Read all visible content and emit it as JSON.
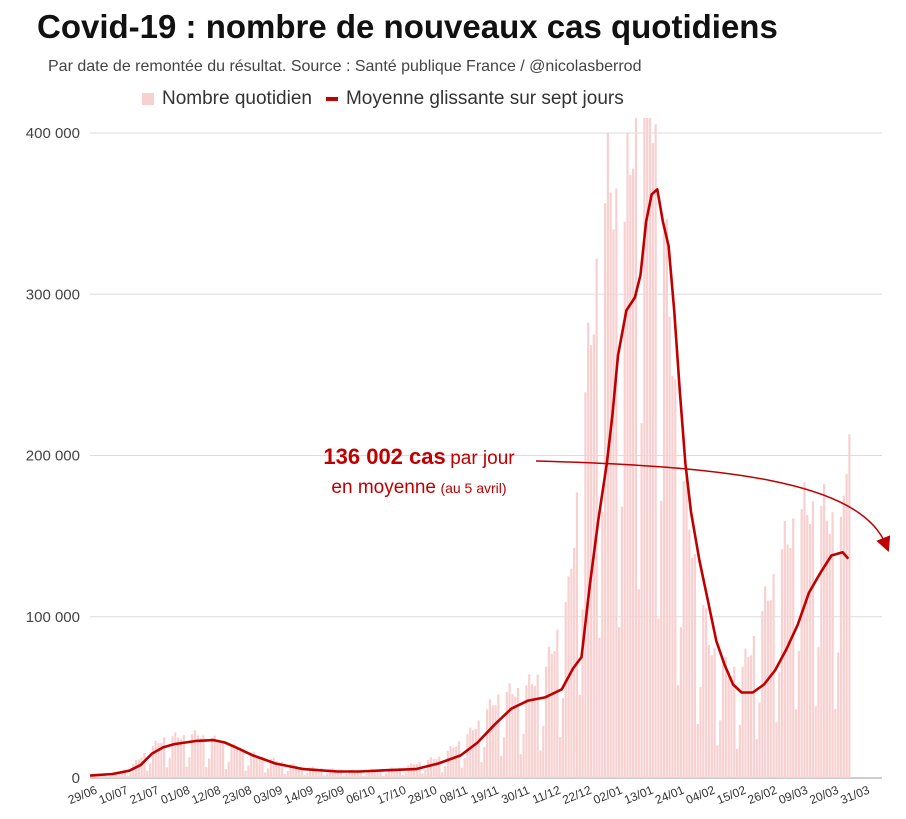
{
  "title": "Covid-19 : nombre de nouveaux cas quotidiens",
  "subtitle": "Par date de remontée du résultat. Source : Santé publique France / @nicolasberrod",
  "legend": {
    "bars": "Nombre quotidien",
    "line": "Moyenne glissante sur sept jours"
  },
  "annotation": {
    "value": "136 002 cas",
    "per_day": "par jour",
    "average": "en moyenne",
    "date": "(au 5 avril)"
  },
  "colors": {
    "bars": "#f8d0d0",
    "line": "#c00000",
    "grid": "#dddddd",
    "annotation": "#c00000"
  },
  "chart_data": {
    "type": "bar",
    "title": "Covid-19 : nombre de nouveaux cas quotidiens",
    "subtitle": "Par date de remontée du résultat. Source : Santé publique France / @nicolasberrod",
    "y_ticks": [
      {
        "value": 0,
        "label": "0"
      },
      {
        "value": 100000,
        "label": "100 000"
      },
      {
        "value": 200000,
        "label": "200 000"
      },
      {
        "value": 300000,
        "label": "300 000"
      },
      {
        "value": 400000,
        "label": "400 000"
      }
    ],
    "ylim": [
      0,
      400000
    ],
    "x_tick_labels": [
      "29/06",
      "10/07",
      "21/07",
      "01/08",
      "12/08",
      "23/08",
      "03/09",
      "14/09",
      "25/09",
      "06/10",
      "17/10",
      "28/10",
      "08/11",
      "19/11",
      "30/11",
      "11/12",
      "22/12",
      "02/01",
      "13/01",
      "24/01",
      "04/02",
      "15/02",
      "26/02",
      "09/03",
      "20/03",
      "31/03"
    ],
    "x_tick_interval_days": 11,
    "grid": true,
    "legend_position": "top",
    "series": [
      {
        "name": "Nombre quotidien",
        "type": "bar",
        "note": "daily values per day, read approximately",
        "anchors": [
          [
            0,
            2000
          ],
          [
            10,
            3000
          ],
          [
            14,
            6000
          ],
          [
            20,
            15000
          ],
          [
            26,
            22000
          ],
          [
            38,
            24000
          ],
          [
            46,
            20000
          ],
          [
            60,
            12000
          ],
          [
            75,
            6000
          ],
          [
            95,
            4000
          ],
          [
            110,
            5500
          ],
          [
            125,
            12000
          ],
          [
            135,
            25000
          ],
          [
            145,
            45000
          ],
          [
            155,
            50000
          ],
          [
            162,
            60000
          ],
          [
            170,
            100000
          ],
          [
            175,
            190000
          ],
          [
            180,
            280000
          ],
          [
            185,
            330000
          ],
          [
            190,
            300000
          ],
          [
            194,
            380000
          ],
          [
            198,
            420000
          ],
          [
            202,
            330000
          ],
          [
            206,
            260000
          ],
          [
            210,
            170000
          ],
          [
            214,
            130000
          ],
          [
            220,
            75000
          ],
          [
            226,
            60000
          ],
          [
            232,
            60000
          ],
          [
            238,
            85000
          ],
          [
            244,
            115000
          ],
          [
            250,
            140000
          ],
          [
            256,
            150000
          ],
          [
            262,
            145000
          ],
          [
            268,
            140000
          ],
          [
            270,
            203000
          ]
        ]
      },
      {
        "name": "Moyenne glissante sur sept jours",
        "type": "line",
        "points": [
          [
            0,
            1500
          ],
          [
            8,
            2500
          ],
          [
            14,
            4500
          ],
          [
            18,
            8000
          ],
          [
            22,
            15000
          ],
          [
            26,
            19000
          ],
          [
            30,
            21000
          ],
          [
            38,
            23000
          ],
          [
            44,
            23500
          ],
          [
            48,
            22000
          ],
          [
            52,
            19000
          ],
          [
            58,
            14000
          ],
          [
            66,
            9000
          ],
          [
            76,
            5500
          ],
          [
            88,
            4000
          ],
          [
            96,
            4000
          ],
          [
            108,
            5000
          ],
          [
            116,
            5500
          ],
          [
            124,
            9000
          ],
          [
            132,
            14000
          ],
          [
            138,
            22000
          ],
          [
            144,
            33000
          ],
          [
            150,
            43000
          ],
          [
            156,
            48000
          ],
          [
            162,
            50000
          ],
          [
            168,
            55000
          ],
          [
            172,
            68000
          ],
          [
            175,
            75000
          ],
          [
            178,
            120000
          ],
          [
            181,
            160000
          ],
          [
            184,
            195000
          ],
          [
            186,
            225000
          ],
          [
            188,
            262000
          ],
          [
            191,
            290000
          ],
          [
            194,
            298000
          ],
          [
            196,
            312000
          ],
          [
            198,
            345000
          ],
          [
            200,
            362000
          ],
          [
            202,
            365000
          ],
          [
            204,
            345000
          ],
          [
            206,
            330000
          ],
          [
            208,
            290000
          ],
          [
            210,
            240000
          ],
          [
            212,
            195000
          ],
          [
            214,
            165000
          ],
          [
            217,
            135000
          ],
          [
            220,
            110000
          ],
          [
            223,
            85000
          ],
          [
            226,
            70000
          ],
          [
            229,
            58000
          ],
          [
            232,
            53000
          ],
          [
            236,
            53000
          ],
          [
            240,
            58000
          ],
          [
            244,
            67000
          ],
          [
            248,
            80000
          ],
          [
            252,
            95000
          ],
          [
            256,
            115000
          ],
          [
            260,
            127000
          ],
          [
            264,
            138000
          ],
          [
            268,
            140000
          ],
          [
            270,
            136000
          ]
        ]
      }
    ]
  }
}
